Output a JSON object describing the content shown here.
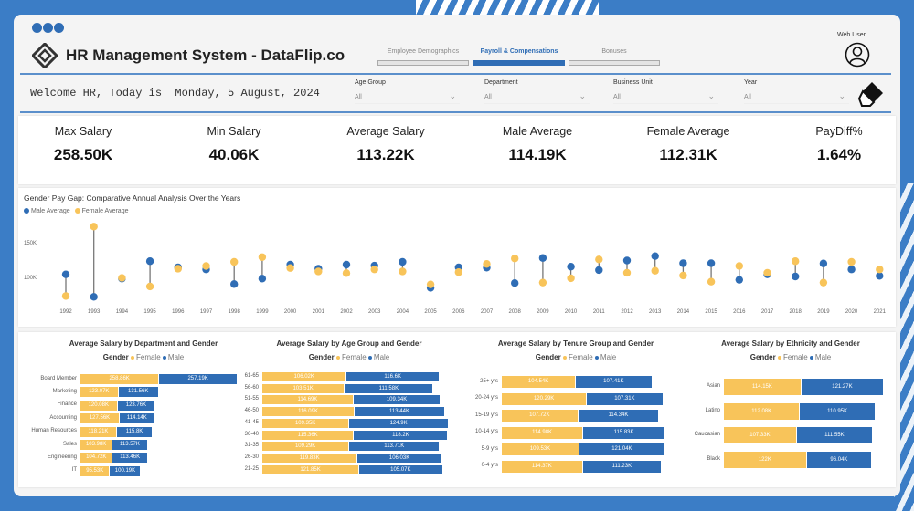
{
  "header": {
    "title": "HR Management System - DataFlip.co",
    "user_label": "Web User",
    "tabs": [
      {
        "label": "Employee Demographics",
        "active": false
      },
      {
        "label": "Payroll & Compensations",
        "active": true
      },
      {
        "label": "Bonuses",
        "active": false
      }
    ]
  },
  "filters": {
    "welcome": "Welcome HR, Today is  Monday, 5 August, 2024",
    "items": [
      {
        "label": "Age Group",
        "value": "All"
      },
      {
        "label": "Department",
        "value": "All"
      },
      {
        "label": "Business Unit",
        "value": "All"
      },
      {
        "label": "Year",
        "value": "All"
      }
    ]
  },
  "kpis": [
    {
      "label": "Max Salary",
      "value": "258.50K"
    },
    {
      "label": "Min Salary",
      "value": "40.06K"
    },
    {
      "label": "Average Salary",
      "value": "113.22K"
    },
    {
      "label": "Male Average",
      "value": "114.19K"
    },
    {
      "label": "Female Average",
      "value": "112.31K"
    },
    {
      "label": "PayDiff%",
      "value": "1.64%"
    }
  ],
  "colors": {
    "male": "#2f6db5",
    "female": "#f8c45a"
  },
  "chart_data": [
    {
      "type": "scatter",
      "title": "Gender Pay Gap: Comparative Annual Analysis Over the Years",
      "legend": [
        "Male Average",
        "Female Average"
      ],
      "yticks": [
        {
          "v": 150,
          "label": "150K"
        },
        {
          "v": 100,
          "label": "100K"
        }
      ],
      "ylim": [
        60,
        185
      ],
      "x": [
        1992,
        1993,
        1994,
        1995,
        1996,
        1997,
        1998,
        1999,
        2000,
        2001,
        2002,
        2003,
        2004,
        2005,
        2006,
        2007,
        2008,
        2009,
        2010,
        2011,
        2012,
        2013,
        2014,
        2015,
        2016,
        2017,
        2018,
        2019,
        2020,
        2021
      ],
      "series": [
        {
          "name": "Male Average",
          "values": [
            106.7,
            73.8,
            100.5,
            126,
            117,
            114,
            92.5,
            100.5,
            121,
            115,
            121,
            119.6,
            125,
            87,
            117,
            116.6,
            94,
            130.7,
            118,
            113,
            127,
            133.4,
            123,
            123,
            98.7,
            106.7,
            103.6,
            122.7,
            114,
            104.5
          ]
        },
        {
          "name": "Female Average",
          "values": [
            75,
            176.7,
            101.5,
            89,
            115,
            119,
            125,
            132,
            116,
            111,
            108.5,
            114,
            111,
            92,
            110,
            122,
            130,
            94.7,
            101,
            128.6,
            109,
            112,
            105,
            96,
            119,
            109,
            126,
            94.7,
            125,
            114
          ]
        }
      ]
    },
    {
      "type": "bar",
      "title": "Average Salary by Department and Gender",
      "legend_title": "Gender",
      "legend": [
        "Female",
        "Male"
      ],
      "categories": [
        "Board Member",
        "Marketing",
        "Finance",
        "Accounting",
        "Human Resources",
        "Sales",
        "Engineering",
        "IT"
      ],
      "series": [
        {
          "name": "Female",
          "values": [
            258.86,
            123.07,
            120.08,
            127.56,
            118.21,
            103.98,
            104.72,
            95.53
          ],
          "labels": [
            "258.86K",
            "123.07K",
            "120.08K",
            "127.56K",
            "118.21K",
            "103.98K",
            "104.72K",
            "95.53K"
          ]
        },
        {
          "name": "Male",
          "values": [
            257.19,
            131.56,
            123.76,
            114.14,
            115.8,
            113.57,
            113.46,
            100.19
          ],
          "labels": [
            "257.19K",
            "131.56K",
            "123.76K",
            "114.14K",
            "115.8K",
            "113.57K",
            "113.46K",
            "100.19K"
          ]
        }
      ]
    },
    {
      "type": "bar",
      "title": "Average Salary by Age Group and Gender",
      "legend_title": "Gender",
      "legend": [
        "Female",
        "Male"
      ],
      "categories": [
        "61-65",
        "56-60",
        "51-55",
        "46-50",
        "41-45",
        "36-40",
        "31-35",
        "26-30",
        "21-25"
      ],
      "series": [
        {
          "name": "Female",
          "values": [
            106.02,
            103.51,
            114.69,
            116.09,
            109.35,
            115.36,
            109.29,
            119.83,
            121.85
          ],
          "labels": [
            "106.02K",
            "103.51K",
            "114.69K",
            "116.09K",
            "109.35K",
            "115.36K",
            "109.29K",
            "119.83K",
            "121.85K"
          ]
        },
        {
          "name": "Male",
          "values": [
            116.6,
            111.58,
            109.34,
            113.44,
            124.9,
            118.2,
            113.71,
            106.03,
            105.07
          ],
          "labels": [
            "116.6K",
            "111.58K",
            "109.34K",
            "113.44K",
            "124.9K",
            "118.2K",
            "113.71K",
            "106.03K",
            "105.07K"
          ]
        }
      ]
    },
    {
      "type": "bar",
      "title": "Average Salary by Tenure Group and Gender",
      "legend_title": "Gender",
      "legend": [
        "Female",
        "Male"
      ],
      "categories": [
        "25+ yrs",
        "20-24 yrs",
        "15-19 yrs",
        "10-14 yrs",
        "5-9 yrs",
        "0-4 yrs"
      ],
      "series": [
        {
          "name": "Female",
          "values": [
            104.54,
            120.29,
            107.72,
            114.98,
            109.53,
            114.37
          ],
          "labels": [
            "104.54K",
            "120.29K",
            "107.72K",
            "114.98K",
            "109.53K",
            "114.37K"
          ]
        },
        {
          "name": "Male",
          "values": [
            107.41,
            107.31,
            114.34,
            115.83,
            121.04,
            111.23
          ],
          "labels": [
            "107.41K",
            "107.31K",
            "114.34K",
            "115.83K",
            "121.04K",
            "111.23K"
          ]
        }
      ]
    },
    {
      "type": "bar",
      "title": "Average Salary by Ethnicity and Gender",
      "legend_title": "Gender",
      "legend": [
        "Female",
        "Male"
      ],
      "categories": [
        "Asian",
        "Latino",
        "Caucasian",
        "Black"
      ],
      "series": [
        {
          "name": "Female",
          "values": [
            114.15,
            112.08,
            107.33,
            122
          ],
          "labels": [
            "114.15K",
            "112.08K",
            "107.33K",
            "122K"
          ]
        },
        {
          "name": "Male",
          "values": [
            121.27,
            110.95,
            111.55,
            96.04
          ],
          "labels": [
            "121.27K",
            "110.95K",
            "111.55K",
            "96.04K"
          ]
        }
      ]
    }
  ]
}
